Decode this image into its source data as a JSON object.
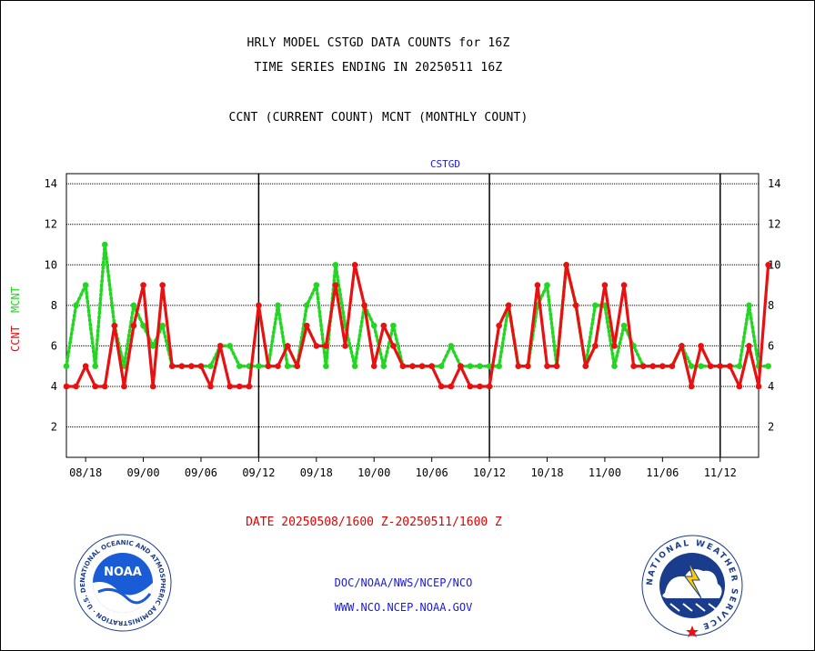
{
  "header": {
    "title_line1": "HRLY MODEL CSTGD DATA COUNTS for 16Z",
    "title_line2": "TIME SERIES ENDING IN 20250511 16Z",
    "title_line3": "CCNT (CURRENT COUNT) MCNT (MONTHLY COUNT)"
  },
  "footer": {
    "date_range": "DATE 20250508/1600 Z-20250511/1600 Z",
    "org_path": "DOC/NOAA/NWS/NCEP/NCO",
    "website": "WWW.NCO.NCEP.NOAA.GOV"
  },
  "logos": {
    "noaa": "NOAA",
    "noaa_ring": "NATIONAL OCEANIC AND ATMOSPHERIC ADMINISTRATION · U.S. DEPARTMENT OF COMMERCE ·",
    "nws_ring": "NATIONAL WEATHER SERVICE"
  },
  "chart_data": {
    "type": "line",
    "title": "CSTGD",
    "ylabel_series1": "CCNT",
    "ylabel_series2": "MCNT",
    "ylim": [
      0.5,
      14.5
    ],
    "yticks": [
      2,
      4,
      6,
      8,
      10,
      12,
      14
    ],
    "grid": true,
    "xtick_labels": [
      "08/18",
      "09/00",
      "09/06",
      "09/12",
      "09/18",
      "10/00",
      "10/06",
      "10/12",
      "10/18",
      "11/00",
      "11/06",
      "11/12"
    ],
    "xtick_hours": [
      2,
      8,
      14,
      20,
      26,
      32,
      38,
      44,
      50,
      56,
      62,
      68
    ],
    "day_boundary_hours": [
      20,
      44,
      68
    ],
    "x_hours_range": [
      0,
      72
    ],
    "colors": {
      "ccnt": "#e81010",
      "mcnt": "#22d622",
      "axis_title": "#1a1ad9"
    },
    "series": [
      {
        "name": "CCNT",
        "style": "solid",
        "values": [
          4,
          4,
          5,
          4,
          4,
          7,
          4,
          7,
          9,
          4,
          9,
          5,
          5,
          5,
          5,
          4,
          6,
          4,
          4,
          4,
          8,
          5,
          5,
          6,
          5,
          7,
          6,
          6,
          9,
          6,
          10,
          8,
          5,
          7,
          6,
          5,
          5,
          5,
          5,
          4,
          4,
          5,
          4,
          4,
          4,
          7,
          8,
          5,
          5,
          9,
          5,
          5,
          10,
          8,
          5,
          6,
          9,
          6,
          9,
          5,
          5,
          5,
          5,
          5,
          6,
          4,
          6,
          5,
          5,
          5,
          4,
          6,
          4,
          10
        ]
      },
      {
        "name": "MCNT",
        "style": "dotted",
        "values": [
          5,
          8,
          9,
          5,
          11,
          7,
          5,
          8,
          7,
          6,
          7,
          5,
          5,
          5,
          5,
          5,
          6,
          6,
          5,
          5,
          5,
          5,
          8,
          5,
          5,
          8,
          9,
          5,
          10,
          7,
          5,
          8,
          7,
          5,
          7,
          5,
          5,
          5,
          5,
          5,
          6,
          5,
          5,
          5,
          5,
          5,
          8,
          5,
          5,
          8,
          9,
          5,
          10,
          8,
          5,
          8,
          8,
          5,
          7,
          6,
          5,
          5,
          5,
          5,
          6,
          5,
          5,
          5,
          5,
          5,
          5,
          8,
          5,
          5
        ]
      }
    ]
  }
}
